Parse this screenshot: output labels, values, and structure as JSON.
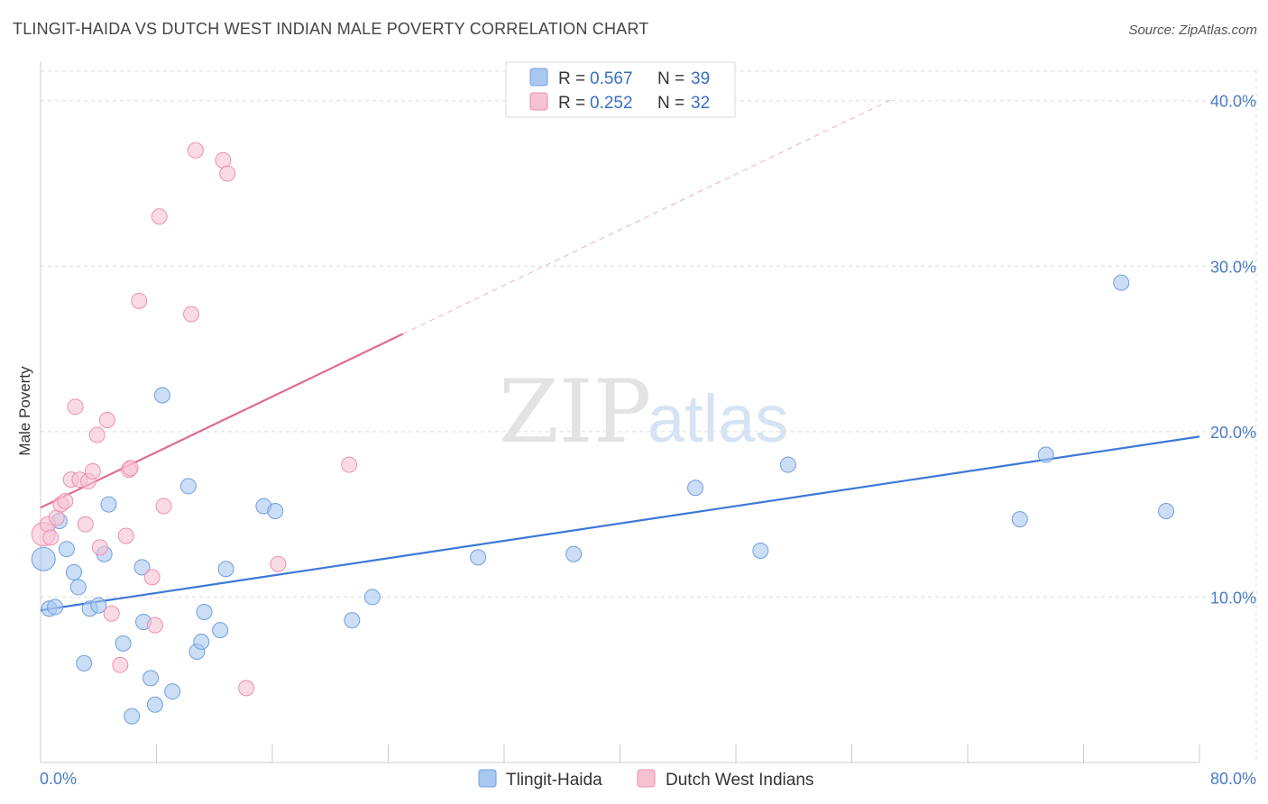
{
  "header": {
    "title": "TLINGIT-HAIDA VS DUTCH WEST INDIAN MALE POVERTY CORRELATION CHART",
    "source": "Source: ZipAtlas.com"
  },
  "watermark": {
    "zip": "ZIP",
    "atlas": "atlas"
  },
  "legend_top": {
    "rows": [
      {
        "r_label": "R = ",
        "r_value": "0.567",
        "n_label": "N = ",
        "n_value": "39",
        "color": "#a9c8ef",
        "stroke": "#6f9fe0"
      },
      {
        "r_label": "R = ",
        "r_value": "0.252",
        "n_label": "N = ",
        "n_value": "32",
        "color": "#f7c3d3",
        "stroke": "#ee8fae"
      }
    ]
  },
  "chart_data": {
    "type": "scatter",
    "title": "TLINGIT-HAIDA VS DUTCH WEST INDIAN MALE POVERTY CORRELATION CHART",
    "xlabel": "",
    "ylabel": "Male Poverty",
    "xlim": [
      0,
      80
    ],
    "ylim": [
      0,
      42
    ],
    "x_tick_labels": [
      "0.0%",
      "80.0%"
    ],
    "y_ticks": [
      10,
      20,
      30,
      40
    ],
    "y_tick_labels": [
      "10.0%",
      "20.0%",
      "30.0%",
      "40.0%"
    ],
    "grid": true,
    "series": [
      {
        "name": "Tlingit-Haida",
        "color": "#a9c8ef",
        "stroke": "#6f9fe0",
        "trend_color": "#3c78d8",
        "trend": {
          "x0": 0,
          "y0": 9.2,
          "x1": 80,
          "y1": 19.7,
          "dashed_to": 80
        },
        "points": [
          {
            "x": 0.2,
            "y": 12.3,
            "big": true
          },
          {
            "x": 0.6,
            "y": 9.3
          },
          {
            "x": 1.0,
            "y": 9.4
          },
          {
            "x": 1.3,
            "y": 14.6
          },
          {
            "x": 1.8,
            "y": 12.9
          },
          {
            "x": 2.3,
            "y": 11.5
          },
          {
            "x": 2.6,
            "y": 10.6
          },
          {
            "x": 3.0,
            "y": 6.0
          },
          {
            "x": 3.4,
            "y": 9.3
          },
          {
            "x": 4.0,
            "y": 9.5
          },
          {
            "x": 4.4,
            "y": 12.6
          },
          {
            "x": 4.7,
            "y": 15.6
          },
          {
            "x": 5.7,
            "y": 7.2
          },
          {
            "x": 6.3,
            "y": 2.8
          },
          {
            "x": 7.0,
            "y": 11.8
          },
          {
            "x": 7.1,
            "y": 8.5
          },
          {
            "x": 7.6,
            "y": 5.1
          },
          {
            "x": 7.9,
            "y": 3.5
          },
          {
            "x": 8.4,
            "y": 22.2
          },
          {
            "x": 9.1,
            "y": 4.3
          },
          {
            "x": 10.2,
            "y": 16.7
          },
          {
            "x": 10.8,
            "y": 6.7
          },
          {
            "x": 11.1,
            "y": 7.3
          },
          {
            "x": 11.3,
            "y": 9.1
          },
          {
            "x": 12.4,
            "y": 8.0
          },
          {
            "x": 12.8,
            "y": 11.7
          },
          {
            "x": 15.4,
            "y": 15.5
          },
          {
            "x": 16.2,
            "y": 15.2
          },
          {
            "x": 21.5,
            "y": 8.6
          },
          {
            "x": 22.9,
            "y": 10.0
          },
          {
            "x": 30.2,
            "y": 12.4
          },
          {
            "x": 36.8,
            "y": 12.6
          },
          {
            "x": 45.2,
            "y": 16.6
          },
          {
            "x": 49.7,
            "y": 12.8
          },
          {
            "x": 51.6,
            "y": 18.0
          },
          {
            "x": 67.6,
            "y": 14.7
          },
          {
            "x": 69.4,
            "y": 18.6
          },
          {
            "x": 74.6,
            "y": 29.0
          },
          {
            "x": 77.7,
            "y": 15.2
          }
        ]
      },
      {
        "name": "Dutch West Indians",
        "color": "#f7c3d3",
        "stroke": "#ee8fae",
        "trend_color": "#e06b96",
        "trend": {
          "x0": 0,
          "y0": 15.4,
          "x1": 25,
          "y1": 25.9,
          "dashed_to": 59
        },
        "points": [
          {
            "x": 0.2,
            "y": 13.8,
            "big": true
          },
          {
            "x": 0.5,
            "y": 14.4
          },
          {
            "x": 0.7,
            "y": 13.6
          },
          {
            "x": 1.1,
            "y": 14.8
          },
          {
            "x": 1.4,
            "y": 15.6
          },
          {
            "x": 1.7,
            "y": 15.8
          },
          {
            "x": 2.1,
            "y": 17.1
          },
          {
            "x": 2.4,
            "y": 21.5
          },
          {
            "x": 2.7,
            "y": 17.1
          },
          {
            "x": 3.1,
            "y": 14.4
          },
          {
            "x": 3.3,
            "y": 17.0
          },
          {
            "x": 3.6,
            "y": 17.6
          },
          {
            "x": 3.9,
            "y": 19.8
          },
          {
            "x": 4.1,
            "y": 13.0
          },
          {
            "x": 4.6,
            "y": 20.7
          },
          {
            "x": 4.9,
            "y": 9.0
          },
          {
            "x": 5.5,
            "y": 5.9
          },
          {
            "x": 5.9,
            "y": 13.7
          },
          {
            "x": 6.1,
            "y": 17.7
          },
          {
            "x": 6.2,
            "y": 17.8
          },
          {
            "x": 6.8,
            "y": 27.9
          },
          {
            "x": 7.7,
            "y": 11.2
          },
          {
            "x": 7.9,
            "y": 8.3
          },
          {
            "x": 8.2,
            "y": 33.0
          },
          {
            "x": 8.5,
            "y": 15.5
          },
          {
            "x": 10.4,
            "y": 27.1
          },
          {
            "x": 10.7,
            "y": 37.0
          },
          {
            "x": 12.6,
            "y": 36.4
          },
          {
            "x": 12.9,
            "y": 35.6
          },
          {
            "x": 14.2,
            "y": 4.5
          },
          {
            "x": 16.4,
            "y": 12.0
          },
          {
            "x": 21.3,
            "y": 18.0
          }
        ]
      }
    ]
  }
}
